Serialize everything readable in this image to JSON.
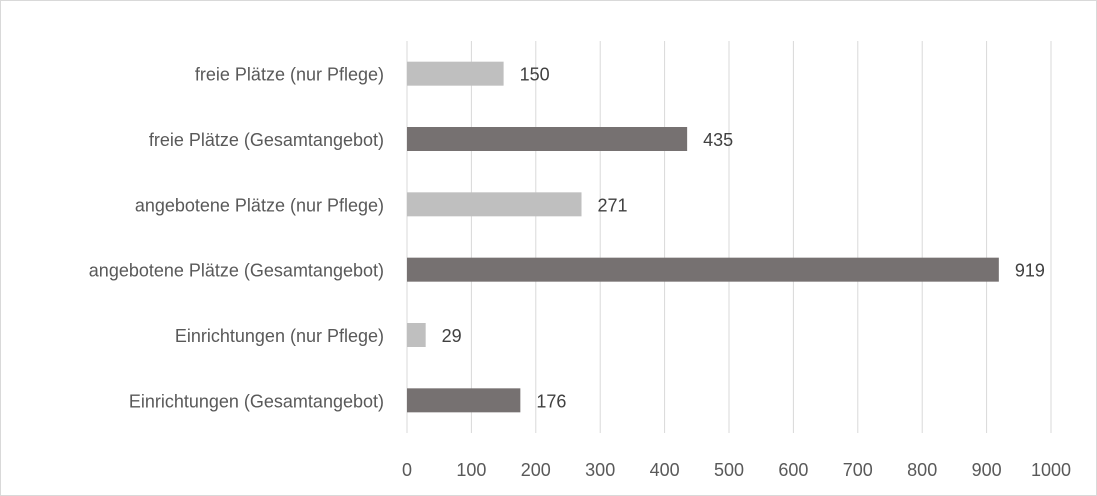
{
  "chart_data": {
    "type": "bar",
    "orientation": "horizontal",
    "categories": [
      "freie Plätze (nur Pflege)",
      "freie Plätze (Gesamtangebot)",
      "angebotene Plätze (nur Pflege)",
      "angebotene Plätze (Gesamtangebot)",
      "Einrichtungen (nur Pflege)",
      "Einrichtungen (Gesamtangebot)"
    ],
    "values": [
      150,
      435,
      271,
      919,
      29,
      176
    ],
    "bar_colors": [
      "#bfbfbf",
      "#767171",
      "#bfbfbf",
      "#767171",
      "#bfbfbf",
      "#767171"
    ],
    "data_labels": [
      "150",
      "435",
      "271",
      "919",
      "29",
      "176"
    ],
    "xlim": [
      0,
      1000
    ],
    "xticks": [
      "0",
      "100",
      "200",
      "300",
      "400",
      "500",
      "600",
      "700",
      "800",
      "900",
      "1000"
    ],
    "tick_values": [
      0,
      100,
      200,
      300,
      400,
      500,
      600,
      700,
      800,
      900,
      1000
    ],
    "grid": true,
    "title": "",
    "xlabel": "",
    "ylabel": ""
  }
}
